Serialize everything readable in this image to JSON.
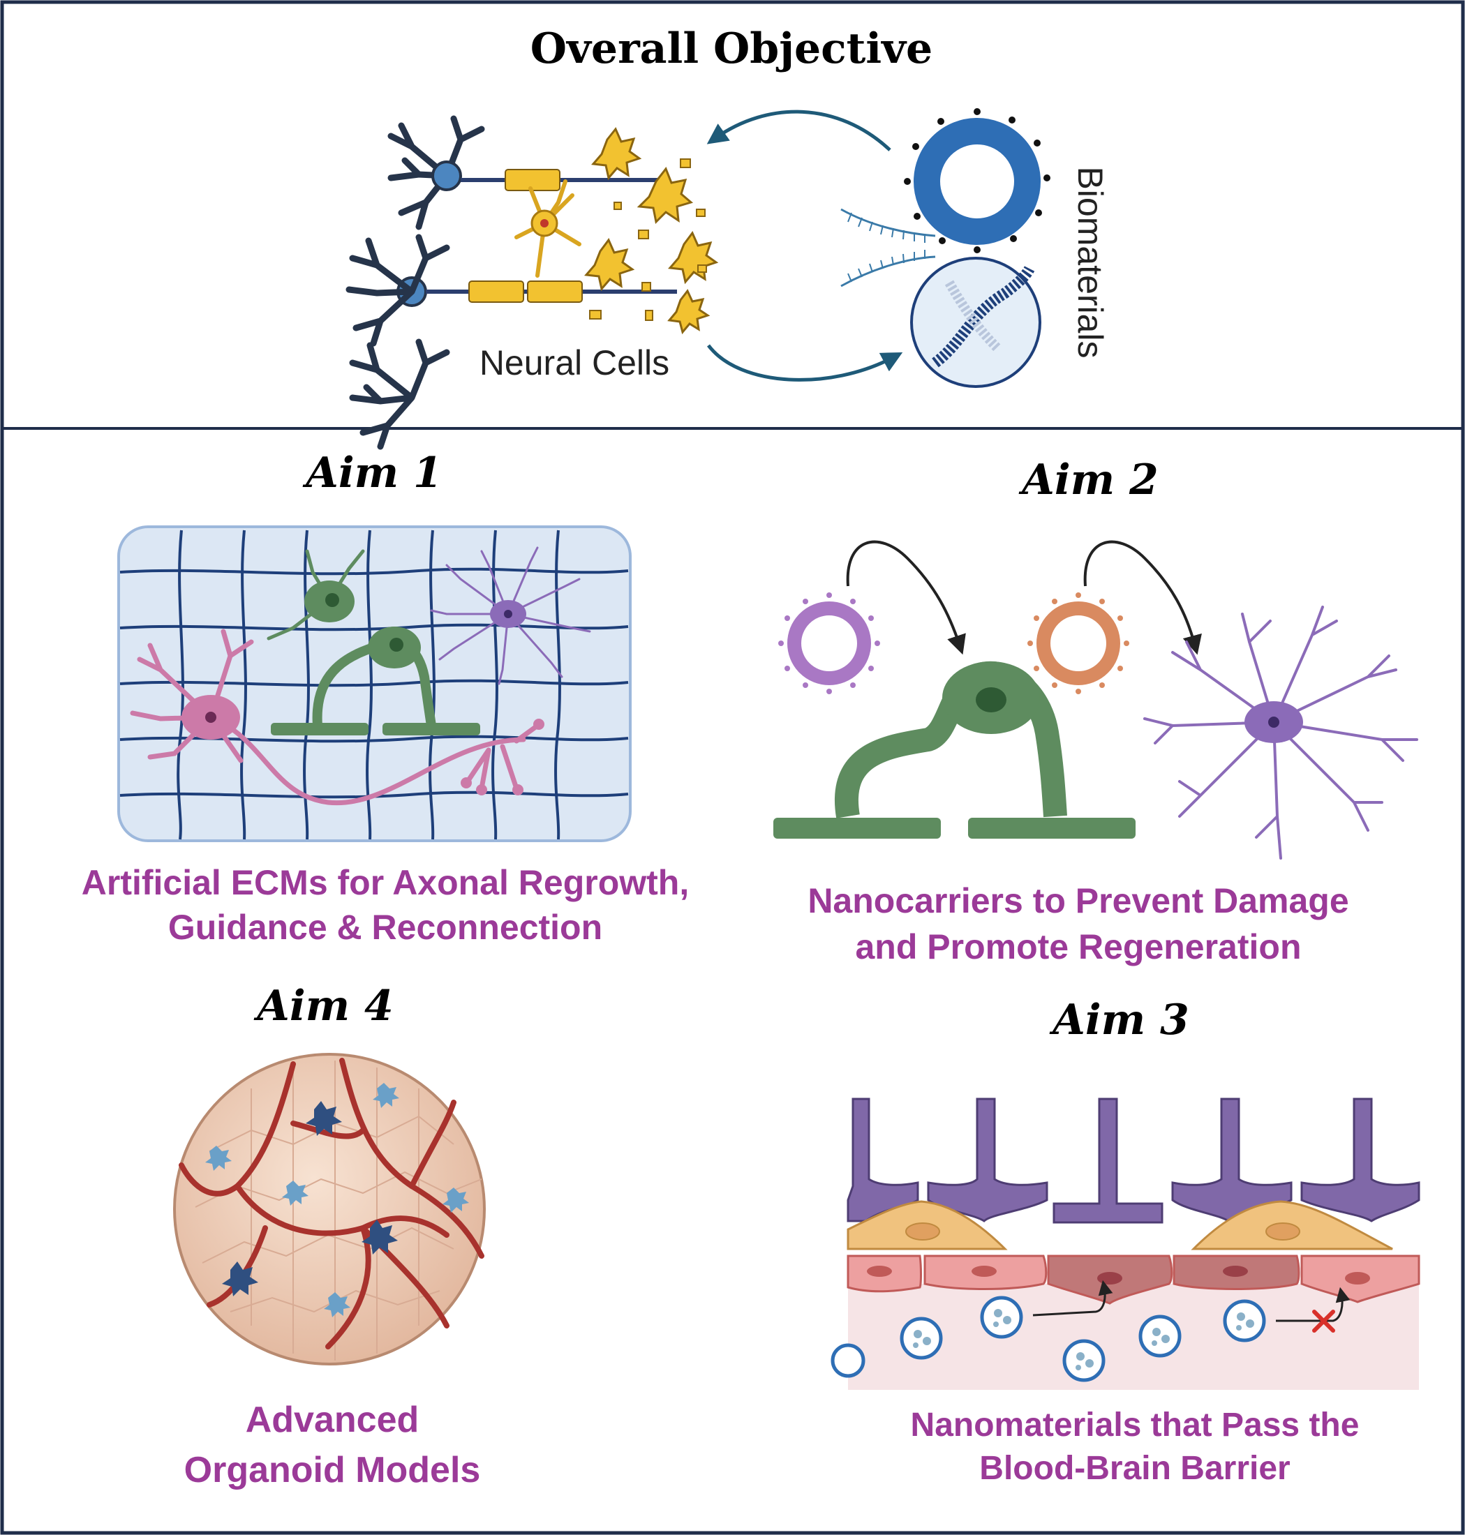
{
  "header": {
    "title": "Overall Objective",
    "neural_label": "Neural Cells",
    "biomaterials_label": "Biomaterials"
  },
  "aims": {
    "aim1": {
      "heading": "Aim 1",
      "caption_line1": "Artificial ECMs for Axonal Regrowth,",
      "caption_line2": "Guidance & Reconnection"
    },
    "aim2": {
      "heading": "Aim 2",
      "caption_line1": "Nanocarriers to Prevent Damage",
      "caption_line2": "and Promote Regeneration"
    },
    "aim3": {
      "heading": "Aim 3",
      "caption_line1": "Nanomaterials that Pass the",
      "caption_line2": "Blood-Brain Barrier"
    },
    "aim4": {
      "heading": "Aim 4",
      "caption_line1": "Advanced",
      "caption_line2": "Organoid Models"
    }
  },
  "colors": {
    "border": "#1f2d4a",
    "caption": "#9b3a98",
    "axon_blue": "#1e3f7a",
    "neuron_green": "#5e8c5f",
    "astro_purple": "#8b6bb8",
    "pink_neuron": "#cc7aa8",
    "gel_blue": "#dce7f4",
    "myelin_yellow": "#f2c230",
    "vessel_red": "#a8322d",
    "organoid_peach": "#f2d4c0"
  }
}
